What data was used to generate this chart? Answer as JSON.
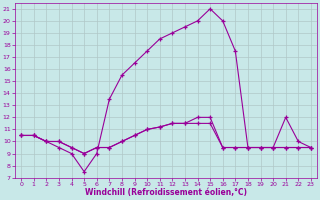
{
  "xlabel": "Windchill (Refroidissement éolien,°C)",
  "x": [
    0,
    1,
    2,
    3,
    4,
    5,
    6,
    7,
    8,
    9,
    10,
    11,
    12,
    13,
    14,
    15,
    16,
    17,
    18,
    19,
    20,
    21,
    22,
    23
  ],
  "line1": [
    10.5,
    10.5,
    10.0,
    10.0,
    9.5,
    9.0,
    9.5,
    9.5,
    10.0,
    10.5,
    11.0,
    11.2,
    11.5,
    11.5,
    11.5,
    11.5,
    9.5,
    9.5,
    9.5,
    9.5,
    9.5,
    9.5,
    9.5,
    9.5
  ],
  "line2": [
    10.5,
    10.5,
    10.0,
    9.5,
    9.0,
    7.5,
    9.0,
    13.5,
    15.5,
    16.5,
    17.5,
    18.5,
    19.0,
    19.5,
    20.0,
    21.0,
    20.0,
    17.5,
    9.5,
    9.5,
    9.5,
    12.0,
    10.0,
    9.5
  ],
  "line3": [
    10.5,
    10.5,
    10.0,
    10.0,
    9.5,
    9.0,
    9.5,
    9.5,
    10.0,
    10.5,
    11.0,
    11.2,
    11.5,
    11.5,
    12.0,
    12.0,
    9.5,
    9.5,
    9.5,
    9.5,
    9.5,
    9.5,
    9.5,
    9.5
  ],
  "line_color": "#990099",
  "bg_color": "#c8e8e8",
  "grid_color": "#b0c8c8",
  "ylim": [
    7,
    21.5
  ],
  "xlim": [
    -0.5,
    23.5
  ],
  "yticks": [
    7,
    8,
    9,
    10,
    11,
    12,
    13,
    14,
    15,
    16,
    17,
    18,
    19,
    20,
    21
  ],
  "xticks": [
    0,
    1,
    2,
    3,
    4,
    5,
    6,
    7,
    8,
    9,
    10,
    11,
    12,
    13,
    14,
    15,
    16,
    17,
    18,
    19,
    20,
    21,
    22,
    23
  ],
  "tick_fontsize": 4.5,
  "xlabel_fontsize": 5.5
}
